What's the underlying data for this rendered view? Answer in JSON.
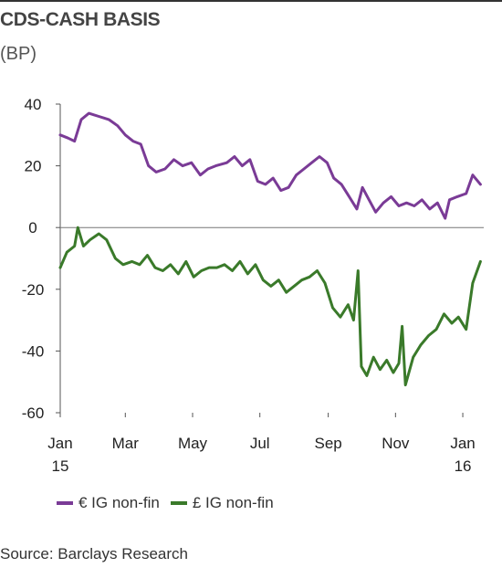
{
  "header": {
    "title": "CDS-CASH BASIS",
    "subtitle": "(BP)"
  },
  "legend": {
    "series1": "€ IG non-fin",
    "series2": "£ IG non-fin"
  },
  "source": "Source: Barclays Research",
  "colors": {
    "series1": "#7a3b96",
    "series2": "#3a7a2a",
    "axis": "#555555"
  },
  "chart_data": {
    "type": "line",
    "xlim": [
      "2015-01-01",
      "2016-01-20"
    ],
    "ylim": [
      -60,
      40
    ],
    "yticks": [
      40,
      20,
      0,
      -20,
      -40,
      -60
    ],
    "xticks": [
      {
        "date": "2015-01-01",
        "label": "Jan",
        "sub": "15"
      },
      {
        "date": "2015-03-01",
        "label": "Mar",
        "sub": ""
      },
      {
        "date": "2015-05-01",
        "label": "May",
        "sub": ""
      },
      {
        "date": "2015-07-01",
        "label": "Jul",
        "sub": ""
      },
      {
        "date": "2015-09-01",
        "label": "Sep",
        "sub": ""
      },
      {
        "date": "2015-11-01",
        "label": "Nov",
        "sub": ""
      },
      {
        "date": "2016-01-01",
        "label": "Jan",
        "sub": "16"
      }
    ],
    "series": [
      {
        "name": "€ IG non-fin",
        "points": [
          [
            "2015-01-01",
            30
          ],
          [
            "2015-01-08",
            29
          ],
          [
            "2015-01-14",
            28
          ],
          [
            "2015-01-20",
            35
          ],
          [
            "2015-01-27",
            37
          ],
          [
            "2015-02-05",
            36
          ],
          [
            "2015-02-14",
            35
          ],
          [
            "2015-02-22",
            33
          ],
          [
            "2015-03-01",
            30
          ],
          [
            "2015-03-08",
            28
          ],
          [
            "2015-03-15",
            27
          ],
          [
            "2015-03-22",
            20
          ],
          [
            "2015-03-29",
            18
          ],
          [
            "2015-04-06",
            19
          ],
          [
            "2015-04-14",
            22
          ],
          [
            "2015-04-22",
            20
          ],
          [
            "2015-04-30",
            21
          ],
          [
            "2015-05-08",
            17
          ],
          [
            "2015-05-15",
            19
          ],
          [
            "2015-05-22",
            20
          ],
          [
            "2015-06-01",
            21
          ],
          [
            "2015-06-08",
            23
          ],
          [
            "2015-06-15",
            20
          ],
          [
            "2015-06-22",
            22
          ],
          [
            "2015-06-29",
            15
          ],
          [
            "2015-07-06",
            14
          ],
          [
            "2015-07-13",
            16
          ],
          [
            "2015-07-20",
            12
          ],
          [
            "2015-07-27",
            13
          ],
          [
            "2015-08-03",
            17
          ],
          [
            "2015-08-10",
            19
          ],
          [
            "2015-08-17",
            21
          ],
          [
            "2015-08-24",
            23
          ],
          [
            "2015-08-31",
            21
          ],
          [
            "2015-09-06",
            16
          ],
          [
            "2015-09-13",
            14
          ],
          [
            "2015-09-20",
            10
          ],
          [
            "2015-09-27",
            6
          ],
          [
            "2015-10-02",
            13
          ],
          [
            "2015-10-08",
            9
          ],
          [
            "2015-10-14",
            5
          ],
          [
            "2015-10-21",
            8
          ],
          [
            "2015-10-28",
            10
          ],
          [
            "2015-11-04",
            7
          ],
          [
            "2015-11-11",
            8
          ],
          [
            "2015-11-18",
            7
          ],
          [
            "2015-11-25",
            9
          ],
          [
            "2015-12-02",
            6
          ],
          [
            "2015-12-09",
            8
          ],
          [
            "2015-12-16",
            3
          ],
          [
            "2015-12-20",
            9
          ],
          [
            "2015-12-27",
            10
          ],
          [
            "2016-01-04",
            11
          ],
          [
            "2016-01-10",
            17
          ],
          [
            "2016-01-17",
            14
          ]
        ]
      },
      {
        "name": "£ IG non-fin",
        "points": [
          [
            "2015-01-01",
            -13
          ],
          [
            "2015-01-07",
            -8
          ],
          [
            "2015-01-14",
            -6
          ],
          [
            "2015-01-17",
            0
          ],
          [
            "2015-01-22",
            -6
          ],
          [
            "2015-01-28",
            -4
          ],
          [
            "2015-02-05",
            -2
          ],
          [
            "2015-02-12",
            -4
          ],
          [
            "2015-02-20",
            -10
          ],
          [
            "2015-02-27",
            -12
          ],
          [
            "2015-03-07",
            -11
          ],
          [
            "2015-03-14",
            -12
          ],
          [
            "2015-03-21",
            -9
          ],
          [
            "2015-03-28",
            -13
          ],
          [
            "2015-04-04",
            -14
          ],
          [
            "2015-04-11",
            -12
          ],
          [
            "2015-04-18",
            -15
          ],
          [
            "2015-04-25",
            -11
          ],
          [
            "2015-05-02",
            -16
          ],
          [
            "2015-05-09",
            -14
          ],
          [
            "2015-05-16",
            -13
          ],
          [
            "2015-05-23",
            -13
          ],
          [
            "2015-05-30",
            -12
          ],
          [
            "2015-06-06",
            -14
          ],
          [
            "2015-06-13",
            -11
          ],
          [
            "2015-06-20",
            -15
          ],
          [
            "2015-06-27",
            -12
          ],
          [
            "2015-07-04",
            -17
          ],
          [
            "2015-07-11",
            -19
          ],
          [
            "2015-07-18",
            -17
          ],
          [
            "2015-07-25",
            -21
          ],
          [
            "2015-08-01",
            -19
          ],
          [
            "2015-08-08",
            -17
          ],
          [
            "2015-08-15",
            -16
          ],
          [
            "2015-08-22",
            -14
          ],
          [
            "2015-08-29",
            -18
          ],
          [
            "2015-09-05",
            -26
          ],
          [
            "2015-09-12",
            -29
          ],
          [
            "2015-09-19",
            -25
          ],
          [
            "2015-09-24",
            -30
          ],
          [
            "2015-09-28",
            -14
          ],
          [
            "2015-10-01",
            -45
          ],
          [
            "2015-10-06",
            -48
          ],
          [
            "2015-10-12",
            -42
          ],
          [
            "2015-10-18",
            -46
          ],
          [
            "2015-10-24",
            -43
          ],
          [
            "2015-10-30",
            -47
          ],
          [
            "2015-11-04",
            -44
          ],
          [
            "2015-11-07",
            -32
          ],
          [
            "2015-11-10",
            -51
          ],
          [
            "2015-11-17",
            -42
          ],
          [
            "2015-11-24",
            -38
          ],
          [
            "2015-12-01",
            -35
          ],
          [
            "2015-12-08",
            -33
          ],
          [
            "2015-12-15",
            -28
          ],
          [
            "2015-12-22",
            -31
          ],
          [
            "2015-12-28",
            -29
          ],
          [
            "2016-01-04",
            -33
          ],
          [
            "2016-01-10",
            -18
          ],
          [
            "2016-01-17",
            -11
          ]
        ]
      }
    ]
  }
}
